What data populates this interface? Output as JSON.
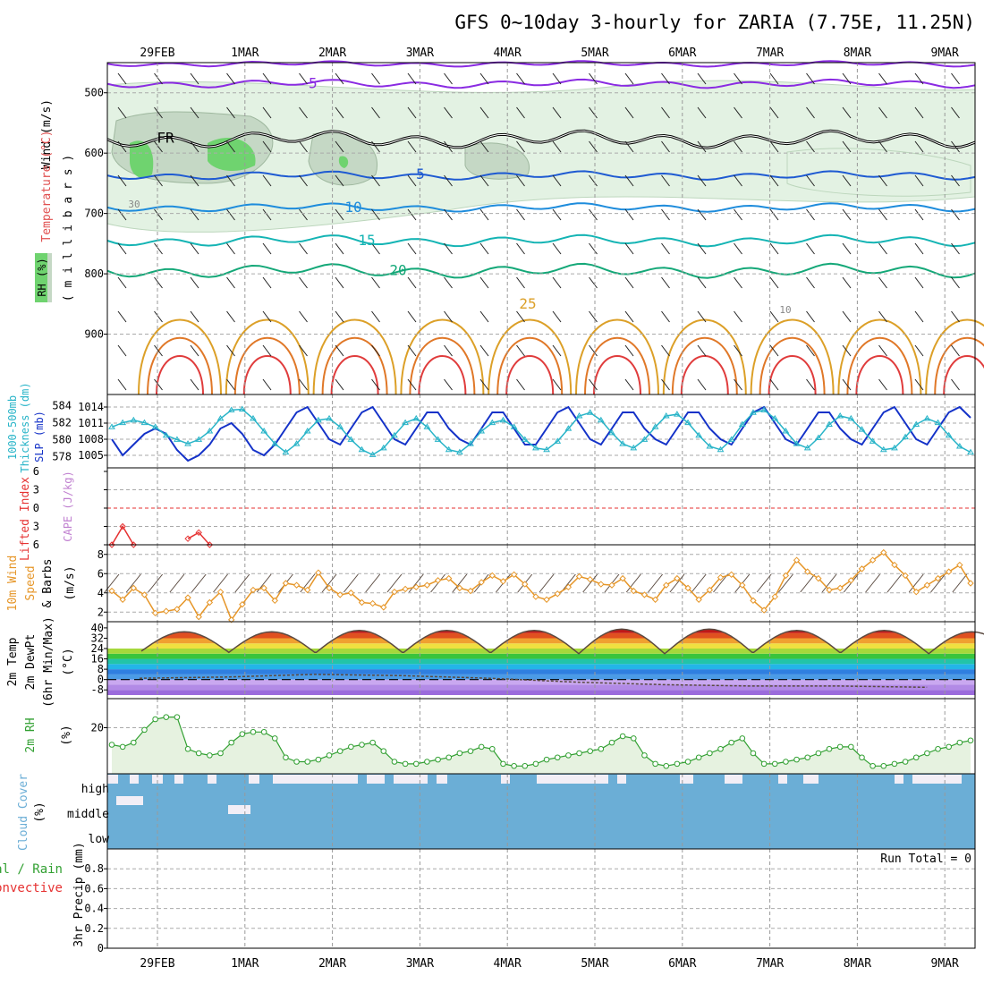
{
  "title": "GFS 0~10day 3-hourly for ZARIA (7.75E, 11.25N)",
  "dates": [
    "29FEB",
    "1MAR",
    "2MAR",
    "3MAR",
    "4MAR",
    "5MAR",
    "6MAR",
    "7MAR",
    "8MAR",
    "9MAR"
  ],
  "panel_labels": {
    "upper": {
      "rh": "RH (%)",
      "temperature": "Temperature (°C)",
      "wind": "Wind (m/s)",
      "yaxis": "( m i l l i b a r s )"
    },
    "slp": {
      "thick1": "1000-500mb",
      "thick2": "Thickness (dm)",
      "slp": "SLP (mb)"
    },
    "cape": {
      "li": "Lifted Index",
      "cape": "CAPE (J/kg)"
    },
    "wind10": {
      "l1": "10m Wind",
      "l2": "Speed",
      "l3": "& Barbs",
      "unit": "(m/s)"
    },
    "temp2m": {
      "l1": "2m Temp",
      "l2": "2m DewPt",
      "l3": "(6hr Min/Max)",
      "unit": "(°C)"
    },
    "rh2m": {
      "l1": "2m RH",
      "unit": "(%)"
    },
    "cloud": {
      "l1": "Cloud Cover",
      "unit": "(%)",
      "high": "high",
      "middle": "middle",
      "low": "low"
    },
    "precip": {
      "l1": "Total / Rain",
      "l2": "Convective",
      "l3": "3hr Precip (mm)",
      "run_total": "Run Total = 0"
    }
  },
  "colors": {
    "rh_green": "#6fd36f",
    "rh_light": "#e3f2e3",
    "rh_mid": "#c5d8c5",
    "slp_line": "#1432c8",
    "thickness_line": "#28b4c8",
    "wind_speed": "#e69628",
    "rh2m_line": "#32a032",
    "cloud": "#6baed6",
    "lifted_index": "#e63232"
  },
  "chart_data": [
    {
      "type": "contour",
      "name": "upper-air cross section",
      "ylabel": "( m i l l i b a r s )",
      "y_ticks": [
        500,
        600,
        700,
        800,
        900
      ],
      "ylim": [
        1000,
        450
      ],
      "isotherm_labels": [
        {
          "value": "-5",
          "level": 485
        },
        {
          "value": "FR",
          "level": 575
        },
        {
          "value": "5",
          "level": 635
        },
        {
          "value": "10",
          "level": 690
        },
        {
          "value": "15",
          "level": 745
        },
        {
          "value": "20",
          "level": 795
        },
        {
          "value": "25",
          "level": 850
        }
      ],
      "rh_labels": [
        "30",
        "10"
      ]
    },
    {
      "type": "line",
      "name": "SLP / Thickness",
      "yticks_left": [
        578,
        580,
        582,
        584
      ],
      "yticks_right": [
        1005,
        1008,
        1011,
        1014
      ],
      "series": [
        {
          "name": "SLP (mb)",
          "axis": "right",
          "values": [
            1008,
            1005,
            1007,
            1009,
            1010,
            1009,
            1006,
            1004,
            1005,
            1007,
            1010,
            1011,
            1009,
            1006,
            1005,
            1007,
            1010,
            1013,
            1014,
            1011,
            1008,
            1007,
            1010,
            1013,
            1014,
            1011,
            1008,
            1007,
            1010,
            1013,
            1013,
            1010,
            1008,
            1007,
            1010,
            1013,
            1013,
            1010,
            1007,
            1007,
            1010,
            1013,
            1014,
            1011,
            1008,
            1007,
            1010,
            1013,
            1013,
            1010,
            1008,
            1007,
            1010,
            1013,
            1013,
            1010,
            1008,
            1007,
            1010,
            1013,
            1014,
            1011,
            1008,
            1007,
            1010,
            1013,
            1013,
            1010,
            1008,
            1007,
            1010,
            1013,
            1014,
            1011,
            1008,
            1007,
            1010,
            1013,
            1014,
            1012
          ]
        },
        {
          "name": "Thickness (dm)",
          "axis": "left",
          "values": [
            581.5,
            582,
            582.3,
            582,
            581.5,
            580.5,
            580,
            579.5,
            580,
            581,
            582.5,
            583.5,
            583.6,
            582.5,
            581,
            579.5,
            578.5,
            579.5,
            581,
            582.3,
            582.5,
            581.5,
            580,
            578.8,
            578.2,
            579,
            580.5,
            582,
            582.5,
            581.5,
            580,
            578.8,
            578.5,
            579.5,
            581,
            582,
            582.3,
            581.5,
            580,
            579,
            578.8,
            579.8,
            581.3,
            582.8,
            583.2,
            582.3,
            580.8,
            579.5,
            579,
            580,
            581.5,
            582.8,
            583,
            582,
            580.5,
            579.2,
            578.8,
            580,
            581.8,
            583.2,
            583.5,
            582.5,
            581,
            579.5,
            579,
            580.2,
            581.8,
            582.8,
            582.5,
            581.2,
            579.8,
            578.8,
            579,
            580.3,
            581.8,
            582.5,
            582,
            580.5,
            579.2,
            578.5
          ]
        }
      ]
    },
    {
      "type": "line",
      "name": "Lifted Index / CAPE",
      "yticks": [
        -6,
        -3,
        0,
        3,
        6
      ],
      "series": [
        {
          "name": "Lifted Index",
          "points": [
            [
              0,
              6
            ],
            [
              1,
              3
            ],
            [
              2,
              6
            ]
          ]
        },
        {
          "name": "Lifted Index",
          "points": [
            [
              7,
              5
            ],
            [
              8,
              4
            ],
            [
              9,
              6
            ]
          ]
        }
      ]
    },
    {
      "type": "line",
      "name": "10m Wind Speed",
      "ylabel": "(m/s)",
      "yticks": [
        2,
        4,
        6,
        8
      ],
      "ylim": [
        1,
        9
      ],
      "series": [
        {
          "name": "10m wind speed",
          "values": [
            4.2,
            3.3,
            4.5,
            3.8,
            1.9,
            2.1,
            2.3,
            3.5,
            1.5,
            3.0,
            4.1,
            1.2,
            2.8,
            4.3,
            4.5,
            3.2,
            5.0,
            4.8,
            4.3,
            6.1,
            4.5,
            3.8,
            4.0,
            3.0,
            2.9,
            2.5,
            4.1,
            4.4,
            4.6,
            4.8,
            5.3,
            5.5,
            4.5,
            4.2,
            5.1,
            5.8,
            5.2,
            5.9,
            4.9,
            3.6,
            3.3,
            3.9,
            4.6,
            5.7,
            5.4,
            4.9,
            4.8,
            5.5,
            4.2,
            3.8,
            3.3,
            4.8,
            5.5,
            4.5,
            3.3,
            4.3,
            5.6,
            5.9,
            4.8,
            3.2,
            2.2,
            3.6,
            5.8,
            7.4,
            6.2,
            5.5,
            4.3,
            4.5,
            5.3,
            6.5,
            7.4,
            8.2,
            6.9,
            5.8,
            4.1,
            4.8,
            5.5,
            6.2,
            6.9,
            5.0
          ]
        }
      ]
    },
    {
      "type": "line",
      "name": "2m Temp / DewPt",
      "ylabel": "(°C)",
      "yticks": [
        -8,
        0,
        8,
        16,
        24,
        32,
        40
      ],
      "series": [
        {
          "name": "2m Temp",
          "daily_min": [
            22,
            21,
            21,
            21,
            21,
            20,
            21,
            21,
            21,
            20
          ],
          "daily_max": [
            37,
            37,
            38,
            38,
            38,
            39,
            39,
            38,
            38,
            37
          ]
        },
        {
          "name": "2m DewPt",
          "values": [
            1,
            2,
            4,
            3,
            1,
            -2,
            -4,
            -5,
            -5,
            -6
          ]
        }
      ]
    },
    {
      "type": "area",
      "name": "2m RH",
      "ylabel": "(%)",
      "yticks": [
        20
      ],
      "ylim": [
        0,
        32
      ],
      "series": [
        {
          "name": "2m RH",
          "values": [
            12,
            11,
            13,
            19,
            24,
            25,
            25,
            10,
            8,
            7,
            8,
            13,
            17,
            18,
            18,
            15,
            6,
            4,
            4,
            5,
            7,
            9,
            11,
            12,
            13,
            9,
            4,
            3,
            3,
            4,
            5,
            6,
            8,
            9,
            11,
            10,
            3,
            2,
            2,
            3,
            5,
            6,
            7,
            8,
            9,
            10,
            13,
            16,
            15,
            7,
            3,
            2,
            3,
            4,
            6,
            8,
            10,
            13,
            15,
            8,
            3,
            3,
            4,
            5,
            6,
            8,
            10,
            11,
            11,
            6,
            2,
            2,
            3,
            4,
            6,
            8,
            10,
            11,
            13,
            14
          ]
        }
      ]
    },
    {
      "type": "bar",
      "name": "Cloud Cover",
      "ylabel": "(%)",
      "categories": [
        "high",
        "middle",
        "low"
      ]
    },
    {
      "type": "line",
      "name": "3hr Precip",
      "ylabel": "3hr Precip (mm)",
      "yticks": [
        0,
        0.2,
        0.4,
        0.6,
        0.8
      ],
      "ylim": [
        0,
        1
      ],
      "series": [
        {
          "name": "Total / Rain",
          "values": []
        },
        {
          "name": "Convective",
          "values": []
        }
      ]
    }
  ]
}
